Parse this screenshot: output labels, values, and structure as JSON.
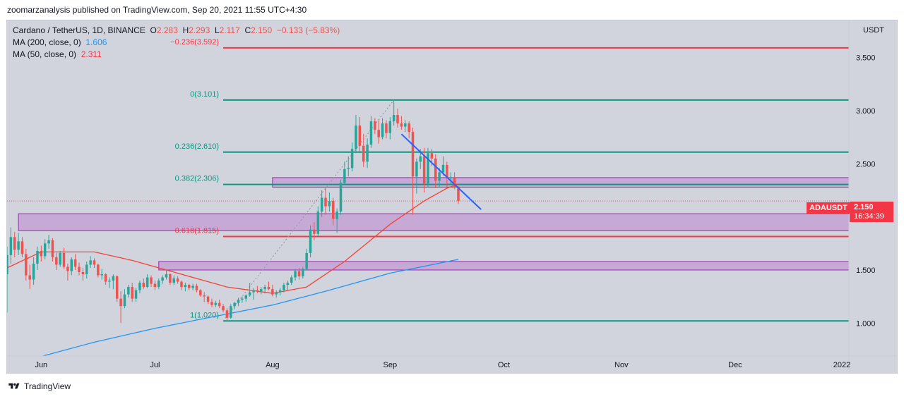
{
  "header": {
    "published": "zoomarzanalysis published on TradingView.com, Sep 20, 2021 11:55 UTC+4:30"
  },
  "legend": {
    "symbol": "Cardano / TetherUS, 1D, BINANCE",
    "o_label": "O",
    "o_value": "2.283",
    "h_label": "H",
    "h_value": "2.293",
    "l_label": "L",
    "l_value": "2.117",
    "c_label": "C",
    "c_value": "2.150",
    "change": "−0.133 (−5.83%)",
    "ma200_label": "MA (200, close, 0)",
    "ma200_value": "1.606",
    "ma50_label": "MA (50, close, 0)",
    "ma50_value": "2.311"
  },
  "axis_unit": "USDT",
  "last_price": {
    "symbol": "ADAUSDT",
    "price": "2.150",
    "countdown": "16:34:39"
  },
  "footer": {
    "brand": "TradingView"
  },
  "colors": {
    "background": "#d1d4dc",
    "up": "#26a69a",
    "down": "#ef5350",
    "fib_teal": "#089981",
    "fib_red": "#f23645",
    "ma200": "#2196f3",
    "ma50": "#f44336",
    "zone": "#c39bd3"
  },
  "chart_data": {
    "type": "candlestick",
    "title": "Cardano / TetherUS, 1D, BINANCE",
    "ylim": [
      0.69,
      3.85
    ],
    "y_ticks": [
      "1.000",
      "1.500",
      "2.000",
      "2.500",
      "3.000",
      "3.500"
    ],
    "x_ticks": [
      "Jun",
      "Jul",
      "Aug",
      "Sep",
      "Oct",
      "Nov",
      "Dec",
      "2022"
    ],
    "x_range": [
      "2021-05-23",
      "2021-12-31"
    ],
    "fib_levels": [
      {
        "label": "−0.236(3.592)",
        "value": 3.592,
        "color": "red"
      },
      {
        "label": "0(3.101)",
        "value": 3.101,
        "color": "teal"
      },
      {
        "label": "0.236(2.610)",
        "value": 2.61,
        "color": "teal"
      },
      {
        "label": "0.382(2.306)",
        "value": 2.306,
        "color": "teal"
      },
      {
        "label": "0.618(1.815)",
        "value": 1.815,
        "color": "red"
      },
      {
        "label": "1(1.020)",
        "value": 1.02,
        "color": "teal"
      }
    ],
    "zones": [
      {
        "from": "2021-08-01",
        "y_low": 2.28,
        "y_high": 2.37
      },
      {
        "from": "2021-05-26",
        "y_low": 1.87,
        "y_high": 2.03
      },
      {
        "from": "2021-07-02",
        "y_low": 1.5,
        "y_high": 1.58
      }
    ],
    "trendline": {
      "start": [
        "2021-09-04",
        2.78
      ],
      "end": [
        "2021-09-25",
        2.07
      ]
    },
    "ma200": [
      [
        "2021-05-23",
        0.6
      ],
      [
        "2021-06-15",
        0.82
      ],
      [
        "2021-07-01",
        0.95
      ],
      [
        "2021-07-15",
        1.05
      ],
      [
        "2021-08-01",
        1.17
      ],
      [
        "2021-08-15",
        1.3
      ],
      [
        "2021-09-01",
        1.47
      ],
      [
        "2021-09-19",
        1.6
      ]
    ],
    "ma50": [
      [
        "2021-05-23",
        1.52
      ],
      [
        "2021-06-01",
        1.67
      ],
      [
        "2021-06-15",
        1.67
      ],
      [
        "2021-06-25",
        1.59
      ],
      [
        "2021-07-06",
        1.48
      ],
      [
        "2021-07-20",
        1.34
      ],
      [
        "2021-08-01",
        1.28
      ],
      [
        "2021-08-10",
        1.34
      ],
      [
        "2021-08-20",
        1.58
      ],
      [
        "2021-09-01",
        1.93
      ],
      [
        "2021-09-10",
        2.15
      ],
      [
        "2021-09-16",
        2.27
      ],
      [
        "2021-09-19",
        2.31
      ]
    ],
    "candles": [
      [
        "2021-05-23",
        1.46,
        1.72,
        1.1,
        1.64
      ],
      [
        "2021-05-24",
        1.64,
        1.9,
        1.56,
        1.81
      ],
      [
        "2021-05-25",
        1.81,
        1.86,
        1.62,
        1.69
      ],
      [
        "2021-05-26",
        1.69,
        1.85,
        1.64,
        1.77
      ],
      [
        "2021-05-27",
        1.77,
        1.81,
        1.62,
        1.65
      ],
      [
        "2021-05-28",
        1.65,
        1.7,
        1.4,
        1.45
      ],
      [
        "2021-05-29",
        1.45,
        1.55,
        1.32,
        1.41
      ],
      [
        "2021-05-30",
        1.41,
        1.62,
        1.36,
        1.56
      ],
      [
        "2021-05-31",
        1.56,
        1.72,
        1.5,
        1.68
      ],
      [
        "2021-06-01",
        1.68,
        1.73,
        1.58,
        1.63
      ],
      [
        "2021-06-02",
        1.63,
        1.79,
        1.6,
        1.75
      ],
      [
        "2021-06-03",
        1.75,
        1.83,
        1.7,
        1.78
      ],
      [
        "2021-06-04",
        1.78,
        1.8,
        1.58,
        1.62
      ],
      [
        "2021-06-05",
        1.62,
        1.66,
        1.5,
        1.55
      ],
      [
        "2021-06-06",
        1.55,
        1.68,
        1.53,
        1.66
      ],
      [
        "2021-06-07",
        1.66,
        1.71,
        1.51,
        1.53
      ],
      [
        "2021-06-08",
        1.53,
        1.56,
        1.4,
        1.49
      ],
      [
        "2021-06-09",
        1.49,
        1.62,
        1.45,
        1.6
      ],
      [
        "2021-06-10",
        1.6,
        1.65,
        1.5,
        1.53
      ],
      [
        "2021-06-11",
        1.53,
        1.57,
        1.45,
        1.48
      ],
      [
        "2021-06-12",
        1.48,
        1.52,
        1.4,
        1.46
      ],
      [
        "2021-06-13",
        1.46,
        1.58,
        1.42,
        1.55
      ],
      [
        "2021-06-14",
        1.55,
        1.63,
        1.52,
        1.59
      ],
      [
        "2021-06-15",
        1.59,
        1.61,
        1.52,
        1.55
      ],
      [
        "2021-06-16",
        1.55,
        1.56,
        1.43,
        1.45
      ],
      [
        "2021-06-17",
        1.45,
        1.51,
        1.41,
        1.46
      ],
      [
        "2021-06-18",
        1.46,
        1.47,
        1.36,
        1.39
      ],
      [
        "2021-06-19",
        1.39,
        1.43,
        1.33,
        1.4
      ],
      [
        "2021-06-20",
        1.4,
        1.46,
        1.32,
        1.44
      ],
      [
        "2021-06-21",
        1.44,
        1.45,
        1.2,
        1.23
      ],
      [
        "2021-06-22",
        1.23,
        1.3,
        1.0,
        1.16
      ],
      [
        "2021-06-23",
        1.16,
        1.32,
        1.14,
        1.27
      ],
      [
        "2021-06-24",
        1.27,
        1.36,
        1.24,
        1.34
      ],
      [
        "2021-06-25",
        1.34,
        1.38,
        1.2,
        1.23
      ],
      [
        "2021-06-26",
        1.23,
        1.33,
        1.2,
        1.31
      ],
      [
        "2021-06-27",
        1.31,
        1.4,
        1.28,
        1.38
      ],
      [
        "2021-06-28",
        1.38,
        1.42,
        1.32,
        1.34
      ],
      [
        "2021-06-29",
        1.34,
        1.46,
        1.33,
        1.43
      ],
      [
        "2021-06-30",
        1.43,
        1.45,
        1.34,
        1.37
      ],
      [
        "2021-07-01",
        1.37,
        1.4,
        1.31,
        1.34
      ],
      [
        "2021-07-02",
        1.34,
        1.42,
        1.32,
        1.4
      ],
      [
        "2021-07-03",
        1.4,
        1.45,
        1.37,
        1.43
      ],
      [
        "2021-07-04",
        1.43,
        1.5,
        1.41,
        1.46
      ],
      [
        "2021-07-05",
        1.46,
        1.47,
        1.36,
        1.38
      ],
      [
        "2021-07-06",
        1.38,
        1.45,
        1.36,
        1.42
      ],
      [
        "2021-07-07",
        1.42,
        1.44,
        1.37,
        1.39
      ],
      [
        "2021-07-08",
        1.39,
        1.4,
        1.31,
        1.34
      ],
      [
        "2021-07-09",
        1.34,
        1.38,
        1.3,
        1.36
      ],
      [
        "2021-07-10",
        1.36,
        1.37,
        1.31,
        1.33
      ],
      [
        "2021-07-11",
        1.33,
        1.37,
        1.31,
        1.35
      ],
      [
        "2021-07-12",
        1.35,
        1.37,
        1.29,
        1.31
      ],
      [
        "2021-07-13",
        1.31,
        1.32,
        1.25,
        1.26
      ],
      [
        "2021-07-14",
        1.26,
        1.29,
        1.2,
        1.25
      ],
      [
        "2021-07-15",
        1.25,
        1.26,
        1.18,
        1.2
      ],
      [
        "2021-07-16",
        1.2,
        1.23,
        1.15,
        1.17
      ],
      [
        "2021-07-17",
        1.17,
        1.21,
        1.15,
        1.19
      ],
      [
        "2021-07-18",
        1.19,
        1.22,
        1.14,
        1.16
      ],
      [
        "2021-07-19",
        1.16,
        1.18,
        1.1,
        1.12
      ],
      [
        "2021-07-20",
        1.12,
        1.14,
        1.02,
        1.05
      ],
      [
        "2021-07-21",
        1.05,
        1.18,
        1.04,
        1.16
      ],
      [
        "2021-07-22",
        1.16,
        1.2,
        1.13,
        1.19
      ],
      [
        "2021-07-23",
        1.19,
        1.24,
        1.16,
        1.22
      ],
      [
        "2021-07-24",
        1.22,
        1.25,
        1.19,
        1.23
      ],
      [
        "2021-07-25",
        1.23,
        1.27,
        1.2,
        1.26
      ],
      [
        "2021-07-26",
        1.26,
        1.38,
        1.25,
        1.29
      ],
      [
        "2021-07-27",
        1.29,
        1.33,
        1.22,
        1.31
      ],
      [
        "2021-07-28",
        1.31,
        1.35,
        1.28,
        1.3
      ],
      [
        "2021-07-29",
        1.3,
        1.34,
        1.27,
        1.32
      ],
      [
        "2021-07-30",
        1.32,
        1.36,
        1.28,
        1.34
      ],
      [
        "2021-07-31",
        1.34,
        1.39,
        1.31,
        1.32
      ],
      [
        "2021-08-01",
        1.32,
        1.36,
        1.25,
        1.27
      ],
      [
        "2021-08-02",
        1.27,
        1.31,
        1.24,
        1.29
      ],
      [
        "2021-08-03",
        1.29,
        1.33,
        1.26,
        1.31
      ],
      [
        "2021-08-04",
        1.31,
        1.38,
        1.29,
        1.36
      ],
      [
        "2021-08-05",
        1.36,
        1.4,
        1.31,
        1.38
      ],
      [
        "2021-08-06",
        1.38,
        1.45,
        1.36,
        1.43
      ],
      [
        "2021-08-07",
        1.43,
        1.51,
        1.4,
        1.49
      ],
      [
        "2021-08-08",
        1.49,
        1.52,
        1.41,
        1.44
      ],
      [
        "2021-08-09",
        1.44,
        1.53,
        1.42,
        1.51
      ],
      [
        "2021-08-10",
        1.51,
        1.7,
        1.5,
        1.66
      ],
      [
        "2021-08-11",
        1.66,
        1.92,
        1.62,
        1.88
      ],
      [
        "2021-08-12",
        1.88,
        1.95,
        1.78,
        1.84
      ],
      [
        "2021-08-13",
        1.84,
        2.1,
        1.82,
        2.05
      ],
      [
        "2021-08-14",
        2.05,
        2.25,
        2.0,
        2.18
      ],
      [
        "2021-08-15",
        2.18,
        2.27,
        2.02,
        2.1
      ],
      [
        "2021-08-16",
        2.1,
        2.23,
        2.05,
        2.15
      ],
      [
        "2021-08-17",
        2.15,
        2.18,
        1.92,
        1.98
      ],
      [
        "2021-08-18",
        1.98,
        2.08,
        1.85,
        2.05
      ],
      [
        "2021-08-19",
        2.05,
        2.35,
        2.02,
        2.32
      ],
      [
        "2021-08-20",
        2.32,
        2.52,
        2.3,
        2.45
      ],
      [
        "2021-08-21",
        2.45,
        2.57,
        2.38,
        2.46
      ],
      [
        "2021-08-22",
        2.46,
        2.7,
        2.43,
        2.64
      ],
      [
        "2021-08-23",
        2.64,
        2.96,
        2.6,
        2.86
      ],
      [
        "2021-08-24",
        2.86,
        2.94,
        2.6,
        2.67
      ],
      [
        "2021-08-25",
        2.67,
        2.78,
        2.47,
        2.52
      ],
      [
        "2021-08-26",
        2.52,
        2.74,
        2.46,
        2.68
      ],
      [
        "2021-08-27",
        2.68,
        2.95,
        2.65,
        2.9
      ],
      [
        "2021-08-28",
        2.9,
        2.93,
        2.78,
        2.82
      ],
      [
        "2021-08-29",
        2.82,
        2.91,
        2.69,
        2.75
      ],
      [
        "2021-08-30",
        2.75,
        2.93,
        2.73,
        2.88
      ],
      [
        "2021-08-31",
        2.88,
        2.91,
        2.74,
        2.79
      ],
      [
        "2021-09-01",
        2.79,
        2.94,
        2.73,
        2.9
      ],
      [
        "2021-09-02",
        2.9,
        3.1,
        2.86,
        2.96
      ],
      [
        "2021-09-03",
        2.96,
        3.02,
        2.84,
        2.88
      ],
      [
        "2021-09-04",
        2.88,
        2.95,
        2.82,
        2.85
      ],
      [
        "2021-09-05",
        2.85,
        2.91,
        2.8,
        2.88
      ],
      [
        "2021-09-06",
        2.88,
        2.9,
        2.74,
        2.8
      ],
      [
        "2021-09-07",
        2.8,
        2.84,
        2.02,
        2.38
      ],
      [
        "2021-09-08",
        2.38,
        2.55,
        2.22,
        2.52
      ],
      [
        "2021-09-09",
        2.52,
        2.64,
        2.45,
        2.57
      ],
      [
        "2021-09-10",
        2.57,
        2.65,
        2.23,
        2.31
      ],
      [
        "2021-09-11",
        2.31,
        2.65,
        2.28,
        2.6
      ],
      [
        "2021-09-12",
        2.6,
        2.64,
        2.48,
        2.55
      ],
      [
        "2021-09-13",
        2.55,
        2.59,
        2.27,
        2.34
      ],
      [
        "2021-09-14",
        2.34,
        2.46,
        2.28,
        2.42
      ],
      [
        "2021-09-15",
        2.42,
        2.57,
        2.39,
        2.49
      ],
      [
        "2021-09-16",
        2.49,
        2.52,
        2.28,
        2.37
      ],
      [
        "2021-09-17",
        2.37,
        2.42,
        2.31,
        2.37
      ],
      [
        "2021-09-18",
        2.37,
        2.42,
        2.26,
        2.28
      ],
      [
        "2021-09-19",
        2.28,
        2.29,
        2.12,
        2.15
      ]
    ]
  }
}
